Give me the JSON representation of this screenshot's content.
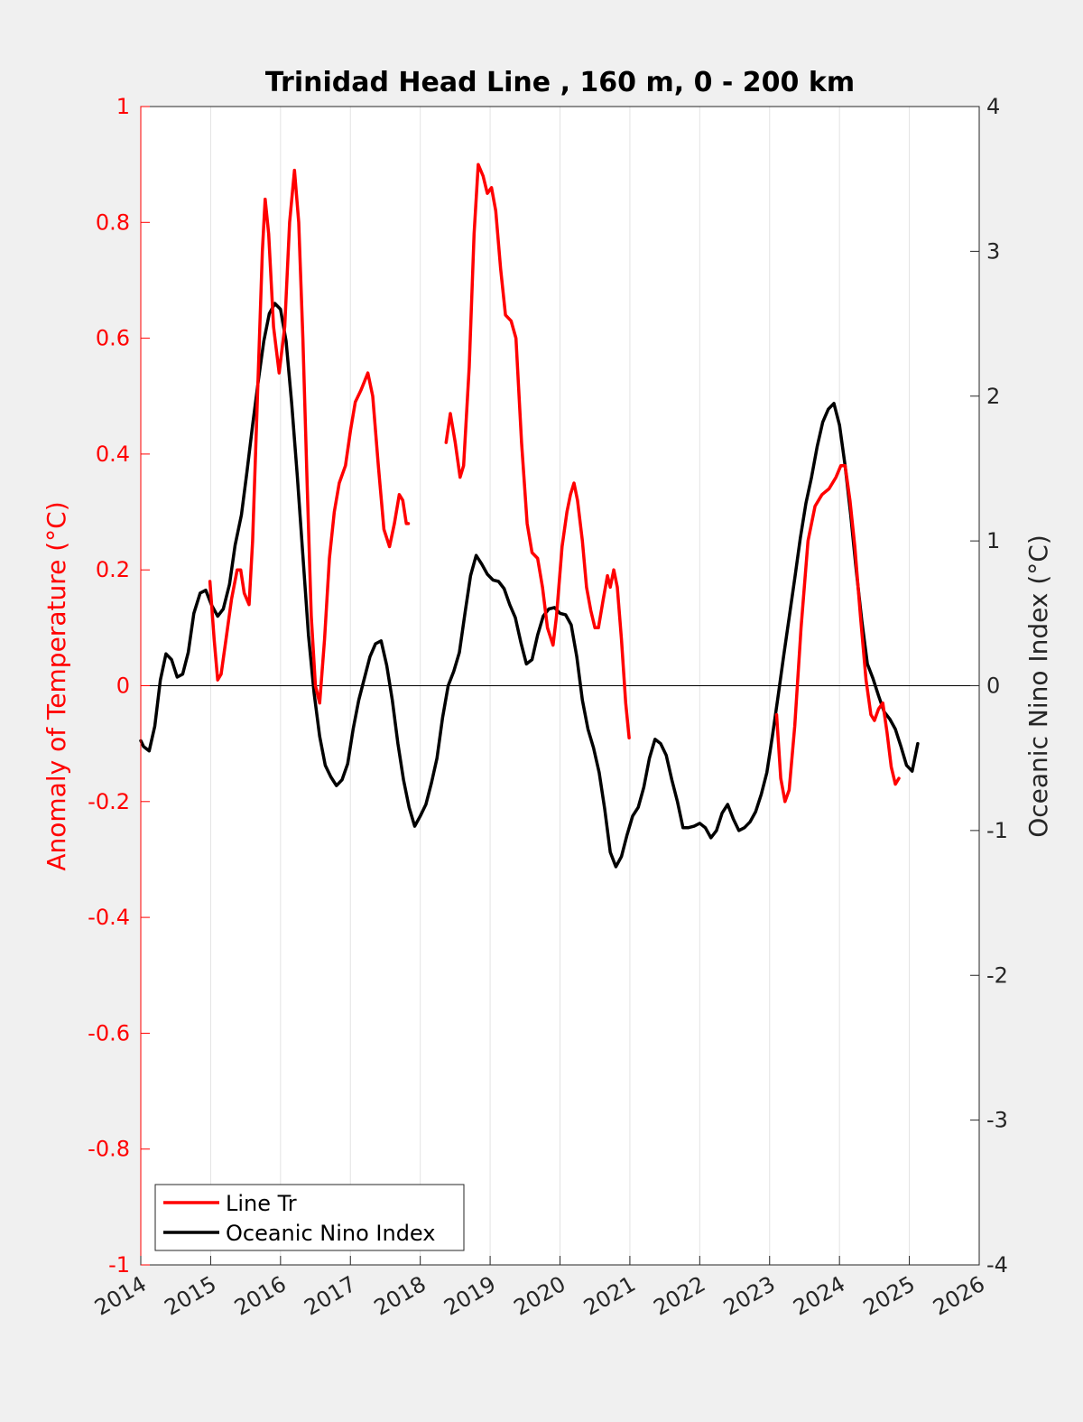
{
  "chart_data": {
    "type": "line",
    "title": "Trinidad Head Line , 160 m, 0 - 200 km",
    "ylabel": "Anomaly of Temperature (°C)",
    "ylabel_right": "Oceanic Nino Index (°C)",
    "xlim": [
      2014,
      2026
    ],
    "ylim": [
      -1,
      1
    ],
    "ylim_right": [
      -4,
      4
    ],
    "x_ticks": [
      "2014",
      "2015",
      "2016",
      "2017",
      "2018",
      "2019",
      "2020",
      "2021",
      "2022",
      "2023",
      "2024",
      "2025",
      "2026"
    ],
    "y_ticks_left": [
      "1",
      "0.8",
      "0.6",
      "0.4",
      "0.2",
      "0",
      "-0.2",
      "-0.4",
      "-0.6",
      "-0.8",
      "-1"
    ],
    "y_ticks_right": [
      "4",
      "3",
      "2",
      "1",
      "0",
      "-1",
      "-2",
      "-3",
      "-4"
    ],
    "grid": "vertical",
    "legend_position": "bottom-left",
    "colors": {
      "line_tr": "#ff0000",
      "oni": "#000000",
      "left_axis": "#ff0000",
      "right_axis": "#262626"
    },
    "series": [
      {
        "name": "Line Tr",
        "axis": "left",
        "segments": [
          [
            [
              2014.99,
              0.18
            ],
            [
              2015.05,
              0.08
            ],
            [
              2015.1,
              0.01
            ],
            [
              2015.15,
              0.02
            ],
            [
              2015.22,
              0.08
            ],
            [
              2015.3,
              0.15
            ],
            [
              2015.38,
              0.2
            ],
            [
              2015.43,
              0.2
            ],
            [
              2015.48,
              0.16
            ],
            [
              2015.55,
              0.14
            ],
            [
              2015.6,
              0.25
            ],
            [
              2015.67,
              0.5
            ],
            [
              2015.74,
              0.75
            ],
            [
              2015.78,
              0.84
            ],
            [
              2015.83,
              0.78
            ],
            [
              2015.9,
              0.62
            ],
            [
              2015.98,
              0.54
            ],
            [
              2016.06,
              0.62
            ],
            [
              2016.13,
              0.8
            ],
            [
              2016.2,
              0.89
            ],
            [
              2016.26,
              0.8
            ],
            [
              2016.32,
              0.6
            ],
            [
              2016.38,
              0.35
            ],
            [
              2016.44,
              0.12
            ],
            [
              2016.5,
              0.0
            ],
            [
              2016.56,
              -0.03
            ],
            [
              2016.63,
              0.08
            ],
            [
              2016.7,
              0.22
            ],
            [
              2016.77,
              0.3
            ],
            [
              2016.84,
              0.35
            ],
            [
              2016.93,
              0.38
            ],
            [
              2017.0,
              0.44
            ],
            [
              2017.07,
              0.49
            ],
            [
              2017.15,
              0.51
            ],
            [
              2017.25,
              0.54
            ],
            [
              2017.32,
              0.5
            ],
            [
              2017.4,
              0.38
            ],
            [
              2017.48,
              0.27
            ],
            [
              2017.56,
              0.24
            ],
            [
              2017.63,
              0.28
            ],
            [
              2017.7,
              0.33
            ],
            [
              2017.75,
              0.32
            ],
            [
              2017.8,
              0.28
            ],
            [
              2017.83,
              0.28
            ]
          ],
          [
            [
              2018.37,
              0.42
            ],
            [
              2018.43,
              0.47
            ],
            [
              2018.5,
              0.42
            ],
            [
              2018.57,
              0.36
            ],
            [
              2018.62,
              0.38
            ],
            [
              2018.7,
              0.55
            ],
            [
              2018.77,
              0.78
            ],
            [
              2018.83,
              0.9
            ],
            [
              2018.9,
              0.88
            ],
            [
              2018.96,
              0.85
            ],
            [
              2019.02,
              0.86
            ],
            [
              2019.08,
              0.82
            ],
            [
              2019.15,
              0.72
            ],
            [
              2019.22,
              0.64
            ],
            [
              2019.3,
              0.63
            ],
            [
              2019.37,
              0.6
            ],
            [
              2019.45,
              0.42
            ],
            [
              2019.53,
              0.28
            ],
            [
              2019.6,
              0.23
            ],
            [
              2019.68,
              0.22
            ],
            [
              2019.75,
              0.17
            ],
            [
              2019.82,
              0.1
            ],
            [
              2019.9,
              0.07
            ],
            [
              2019.95,
              0.12
            ],
            [
              2020.03,
              0.24
            ],
            [
              2020.1,
              0.3
            ],
            [
              2020.15,
              0.33
            ],
            [
              2020.2,
              0.35
            ],
            [
              2020.25,
              0.32
            ],
            [
              2020.32,
              0.25
            ],
            [
              2020.38,
              0.17
            ],
            [
              2020.44,
              0.13
            ],
            [
              2020.5,
              0.1
            ],
            [
              2020.55,
              0.1
            ],
            [
              2020.62,
              0.15
            ],
            [
              2020.68,
              0.19
            ],
            [
              2020.72,
              0.17
            ],
            [
              2020.77,
              0.2
            ],
            [
              2020.82,
              0.17
            ],
            [
              2020.88,
              0.08
            ],
            [
              2020.94,
              -0.03
            ],
            [
              2020.99,
              -0.09
            ]
          ],
          [
            [
              2023.1,
              -0.05
            ],
            [
              2023.16,
              -0.16
            ],
            [
              2023.22,
              -0.2
            ],
            [
              2023.28,
              -0.18
            ],
            [
              2023.36,
              -0.07
            ],
            [
              2023.45,
              0.1
            ],
            [
              2023.55,
              0.25
            ],
            [
              2023.65,
              0.31
            ],
            [
              2023.75,
              0.33
            ],
            [
              2023.85,
              0.34
            ],
            [
              2023.95,
              0.36
            ],
            [
              2024.02,
              0.38
            ],
            [
              2024.08,
              0.38
            ],
            [
              2024.15,
              0.32
            ],
            [
              2024.22,
              0.24
            ],
            [
              2024.3,
              0.12
            ],
            [
              2024.38,
              0.01
            ],
            [
              2024.45,
              -0.05
            ],
            [
              2024.5,
              -0.06
            ],
            [
              2024.56,
              -0.04
            ],
            [
              2024.62,
              -0.03
            ],
            [
              2024.68,
              -0.08
            ],
            [
              2024.74,
              -0.14
            ],
            [
              2024.8,
              -0.17
            ],
            [
              2024.85,
              -0.16
            ]
          ]
        ]
      },
      {
        "name": "Oceanic Nino Index",
        "axis": "right",
        "points": [
          [
            2014.0,
            -0.38
          ],
          [
            2014.04,
            -0.42
          ],
          [
            2014.12,
            -0.45
          ],
          [
            2014.2,
            -0.28
          ],
          [
            2014.28,
            0.04
          ],
          [
            2014.36,
            0.22
          ],
          [
            2014.44,
            0.18
          ],
          [
            2014.52,
            0.06
          ],
          [
            2014.6,
            0.08
          ],
          [
            2014.68,
            0.23
          ],
          [
            2014.76,
            0.5
          ],
          [
            2014.85,
            0.64
          ],
          [
            2014.93,
            0.66
          ],
          [
            2015.01,
            0.56
          ],
          [
            2015.1,
            0.48
          ],
          [
            2015.18,
            0.53
          ],
          [
            2015.27,
            0.7
          ],
          [
            2015.35,
            0.97
          ],
          [
            2015.44,
            1.18
          ],
          [
            2015.52,
            1.48
          ],
          [
            2015.6,
            1.8
          ],
          [
            2015.68,
            2.1
          ],
          [
            2015.76,
            2.38
          ],
          [
            2015.84,
            2.57
          ],
          [
            2015.92,
            2.64
          ],
          [
            2016.0,
            2.6
          ],
          [
            2016.08,
            2.38
          ],
          [
            2016.16,
            1.95
          ],
          [
            2016.24,
            1.45
          ],
          [
            2016.32,
            0.9
          ],
          [
            2016.4,
            0.35
          ],
          [
            2016.48,
            -0.05
          ],
          [
            2016.56,
            -0.35
          ],
          [
            2016.64,
            -0.55
          ],
          [
            2016.72,
            -0.63
          ],
          [
            2016.8,
            -0.69
          ],
          [
            2016.88,
            -0.65
          ],
          [
            2016.96,
            -0.54
          ],
          [
            2017.04,
            -0.3
          ],
          [
            2017.12,
            -0.1
          ],
          [
            2017.2,
            0.05
          ],
          [
            2017.28,
            0.2
          ],
          [
            2017.36,
            0.29
          ],
          [
            2017.44,
            0.31
          ],
          [
            2017.52,
            0.14
          ],
          [
            2017.6,
            -0.1
          ],
          [
            2017.68,
            -0.4
          ],
          [
            2017.76,
            -0.65
          ],
          [
            2017.84,
            -0.84
          ],
          [
            2017.92,
            -0.97
          ],
          [
            2018.0,
            -0.9
          ],
          [
            2018.08,
            -0.82
          ],
          [
            2018.16,
            -0.67
          ],
          [
            2018.24,
            -0.5
          ],
          [
            2018.32,
            -0.22
          ],
          [
            2018.4,
            0.0
          ],
          [
            2018.48,
            0.1
          ],
          [
            2018.56,
            0.23
          ],
          [
            2018.64,
            0.5
          ],
          [
            2018.72,
            0.76
          ],
          [
            2018.8,
            0.9
          ],
          [
            2018.88,
            0.84
          ],
          [
            2018.96,
            0.77
          ],
          [
            2019.04,
            0.73
          ],
          [
            2019.12,
            0.72
          ],
          [
            2019.2,
            0.67
          ],
          [
            2019.28,
            0.56
          ],
          [
            2019.36,
            0.47
          ],
          [
            2019.44,
            0.3
          ],
          [
            2019.52,
            0.15
          ],
          [
            2019.6,
            0.18
          ],
          [
            2019.68,
            0.35
          ],
          [
            2019.76,
            0.48
          ],
          [
            2019.84,
            0.53
          ],
          [
            2019.92,
            0.54
          ],
          [
            2020.0,
            0.5
          ],
          [
            2020.08,
            0.49
          ],
          [
            2020.16,
            0.42
          ],
          [
            2020.24,
            0.2
          ],
          [
            2020.32,
            -0.1
          ],
          [
            2020.4,
            -0.3
          ],
          [
            2020.48,
            -0.43
          ],
          [
            2020.56,
            -0.6
          ],
          [
            2020.64,
            -0.85
          ],
          [
            2020.72,
            -1.15
          ],
          [
            2020.8,
            -1.25
          ],
          [
            2020.88,
            -1.18
          ],
          [
            2020.96,
            -1.03
          ],
          [
            2021.04,
            -0.9
          ],
          [
            2021.12,
            -0.84
          ],
          [
            2021.2,
            -0.7
          ],
          [
            2021.28,
            -0.5
          ],
          [
            2021.36,
            -0.37
          ],
          [
            2021.44,
            -0.4
          ],
          [
            2021.52,
            -0.48
          ],
          [
            2021.6,
            -0.65
          ],
          [
            2021.68,
            -0.8
          ],
          [
            2021.76,
            -0.98
          ],
          [
            2021.84,
            -0.98
          ],
          [
            2021.92,
            -0.97
          ],
          [
            2022.0,
            -0.95
          ],
          [
            2022.08,
            -0.98
          ],
          [
            2022.16,
            -1.05
          ],
          [
            2022.24,
            -1.0
          ],
          [
            2022.32,
            -0.88
          ],
          [
            2022.4,
            -0.82
          ],
          [
            2022.48,
            -0.92
          ],
          [
            2022.56,
            -1.0
          ],
          [
            2022.64,
            -0.98
          ],
          [
            2022.72,
            -0.94
          ],
          [
            2022.8,
            -0.87
          ],
          [
            2022.88,
            -0.75
          ],
          [
            2022.96,
            -0.6
          ],
          [
            2023.04,
            -0.35
          ],
          [
            2023.12,
            -0.08
          ],
          [
            2023.2,
            0.2
          ],
          [
            2023.28,
            0.47
          ],
          [
            2023.36,
            0.74
          ],
          [
            2023.44,
            1.02
          ],
          [
            2023.52,
            1.26
          ],
          [
            2023.6,
            1.44
          ],
          [
            2023.68,
            1.65
          ],
          [
            2023.76,
            1.82
          ],
          [
            2023.84,
            1.91
          ],
          [
            2023.92,
            1.95
          ],
          [
            2024.0,
            1.8
          ],
          [
            2024.08,
            1.52
          ],
          [
            2024.16,
            1.18
          ],
          [
            2024.24,
            0.8
          ],
          [
            2024.32,
            0.45
          ],
          [
            2024.4,
            0.15
          ],
          [
            2024.48,
            0.05
          ],
          [
            2024.56,
            -0.07
          ],
          [
            2024.64,
            -0.18
          ],
          [
            2024.72,
            -0.23
          ],
          [
            2024.8,
            -0.3
          ],
          [
            2024.88,
            -0.42
          ],
          [
            2024.96,
            -0.55
          ],
          [
            2025.04,
            -0.59
          ],
          [
            2025.12,
            -0.4
          ]
        ]
      }
    ]
  }
}
